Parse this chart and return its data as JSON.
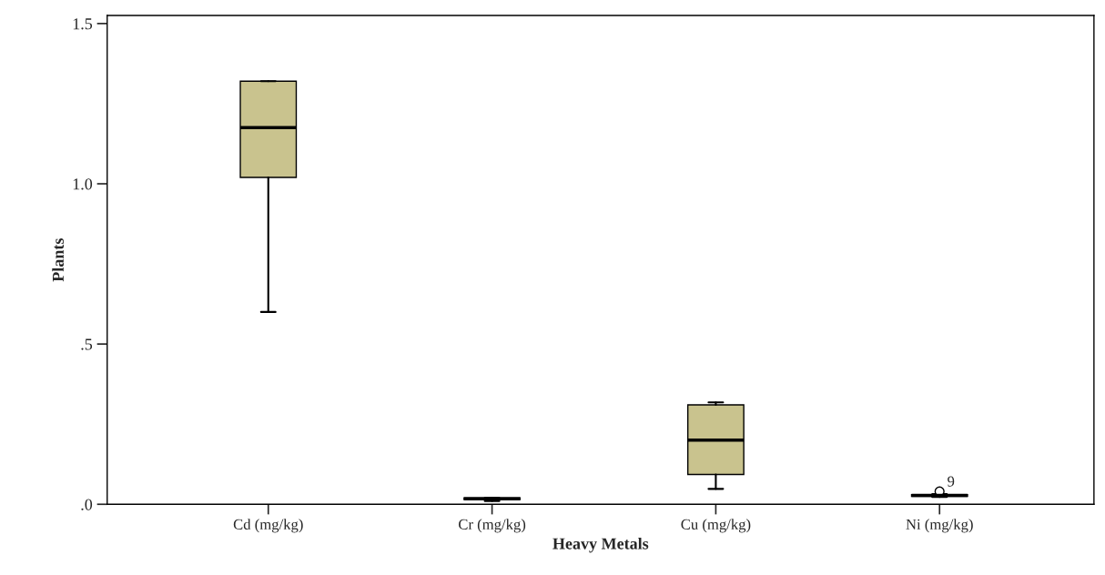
{
  "chart_data": {
    "type": "box",
    "xlabel": "Heavy Metals",
    "ylabel": "Plants",
    "categories": [
      "Cd (mg/kg)",
      "Cr (mg/kg)",
      "Cu (mg/kg)",
      "Ni (mg/kg)"
    ],
    "color": "#c9c38e",
    "boxes": [
      {
        "low": 0.6,
        "q1": 1.02,
        "median": 1.175,
        "q3": 1.32,
        "high": 1.32
      },
      {
        "low": 0.01,
        "q1": 0.015,
        "median": 0.017,
        "q3": 0.02,
        "high": 0.02
      },
      {
        "low": 0.048,
        "q1": 0.093,
        "median": 0.2,
        "q3": 0.31,
        "high": 0.318
      },
      {
        "low": 0.023,
        "q1": 0.025,
        "median": 0.028,
        "q3": 0.03,
        "high": 0.032,
        "outliers": [
          0.04
        ]
      }
    ],
    "annotations": [
      {
        "text": "9",
        "x": "Ni (mg/kg)",
        "y": 0.04
      }
    ],
    "ylim": [
      0,
      1.525
    ],
    "yticks": [
      {
        "value": 0,
        "label": ".0"
      },
      {
        "value": 0.5,
        "label": ".5"
      },
      {
        "value": 1.0,
        "label": "1.0"
      },
      {
        "value": 1.5,
        "label": "1.5"
      }
    ],
    "grid": false,
    "legend": false
  }
}
